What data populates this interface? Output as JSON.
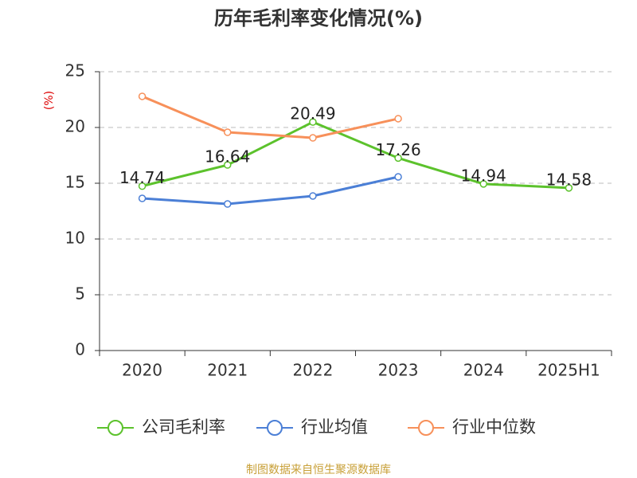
{
  "chart_data": {
    "type": "line",
    "title": "历年毛利率变化情况(%)",
    "y_label": "(%)",
    "categories": [
      "2020",
      "2021",
      "2022",
      "2023",
      "2024",
      "2025H1"
    ],
    "series": [
      {
        "name": "公司毛利率",
        "color": "#5cc22c",
        "values": [
          14.74,
          16.64,
          20.49,
          17.26,
          14.94,
          14.58
        ],
        "labels": true
      },
      {
        "name": "行业均值",
        "color": "#4b7fd6",
        "values": [
          13.64,
          13.14,
          13.86,
          15.57,
          null,
          null
        ]
      },
      {
        "name": "行业中位数",
        "color": "#f7905a",
        "values": [
          22.79,
          19.57,
          19.07,
          20.79,
          null,
          null
        ]
      }
    ],
    "ylim": [
      0,
      25
    ],
    "yticks": [
      0,
      5,
      10,
      15,
      20,
      25
    ],
    "grid": true,
    "legend": "bottom",
    "source": "制图数据来自恒生聚源数据库"
  }
}
